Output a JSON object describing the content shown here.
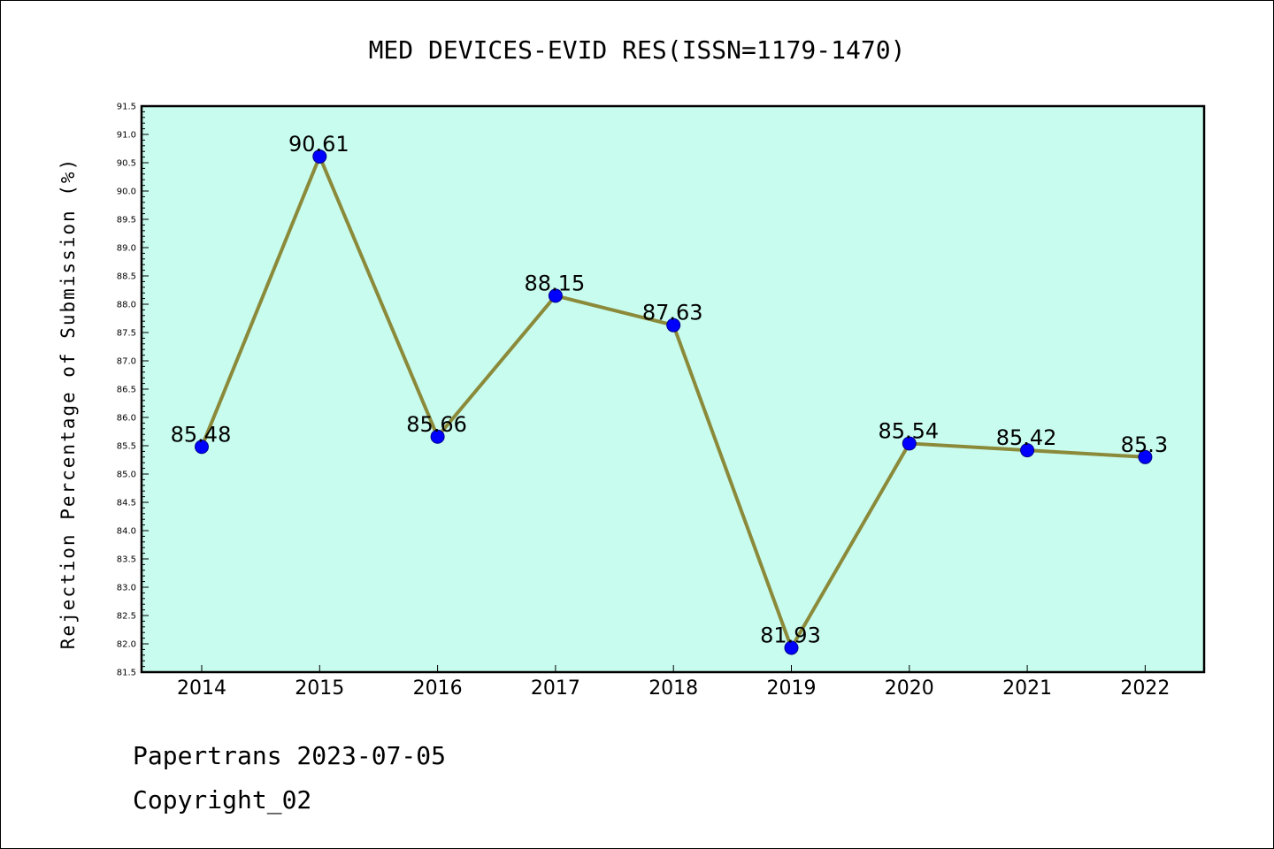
{
  "chart_data": {
    "type": "line",
    "title": "MED DEVICES-EVID RES(ISSN=1179-1470)",
    "ylabel": "Rejection Percentage of Submission (%)",
    "xlabel": "",
    "categories": [
      "2014",
      "2015",
      "2016",
      "2017",
      "2018",
      "2019",
      "2020",
      "2021",
      "2022"
    ],
    "series": [
      {
        "values": [
          85.48,
          90.61,
          85.66,
          88.15,
          87.63,
          81.93,
          85.54,
          85.42,
          85.3
        ],
        "labels": [
          "85.48",
          "90.61",
          "85.66",
          "88.15",
          "87.63",
          "81.93",
          "85.54",
          "85.42",
          "85.3"
        ]
      }
    ],
    "ylim": [
      81.5,
      91.5
    ],
    "ytick_step": 0.5,
    "grid": false,
    "colors": {
      "plot_background": "#c8fcee",
      "line": "#8b8a3a",
      "marker": "#0000ff"
    }
  },
  "footer": {
    "line1": "Papertrans 2023-07-05",
    "line2": "Copyright_02"
  }
}
